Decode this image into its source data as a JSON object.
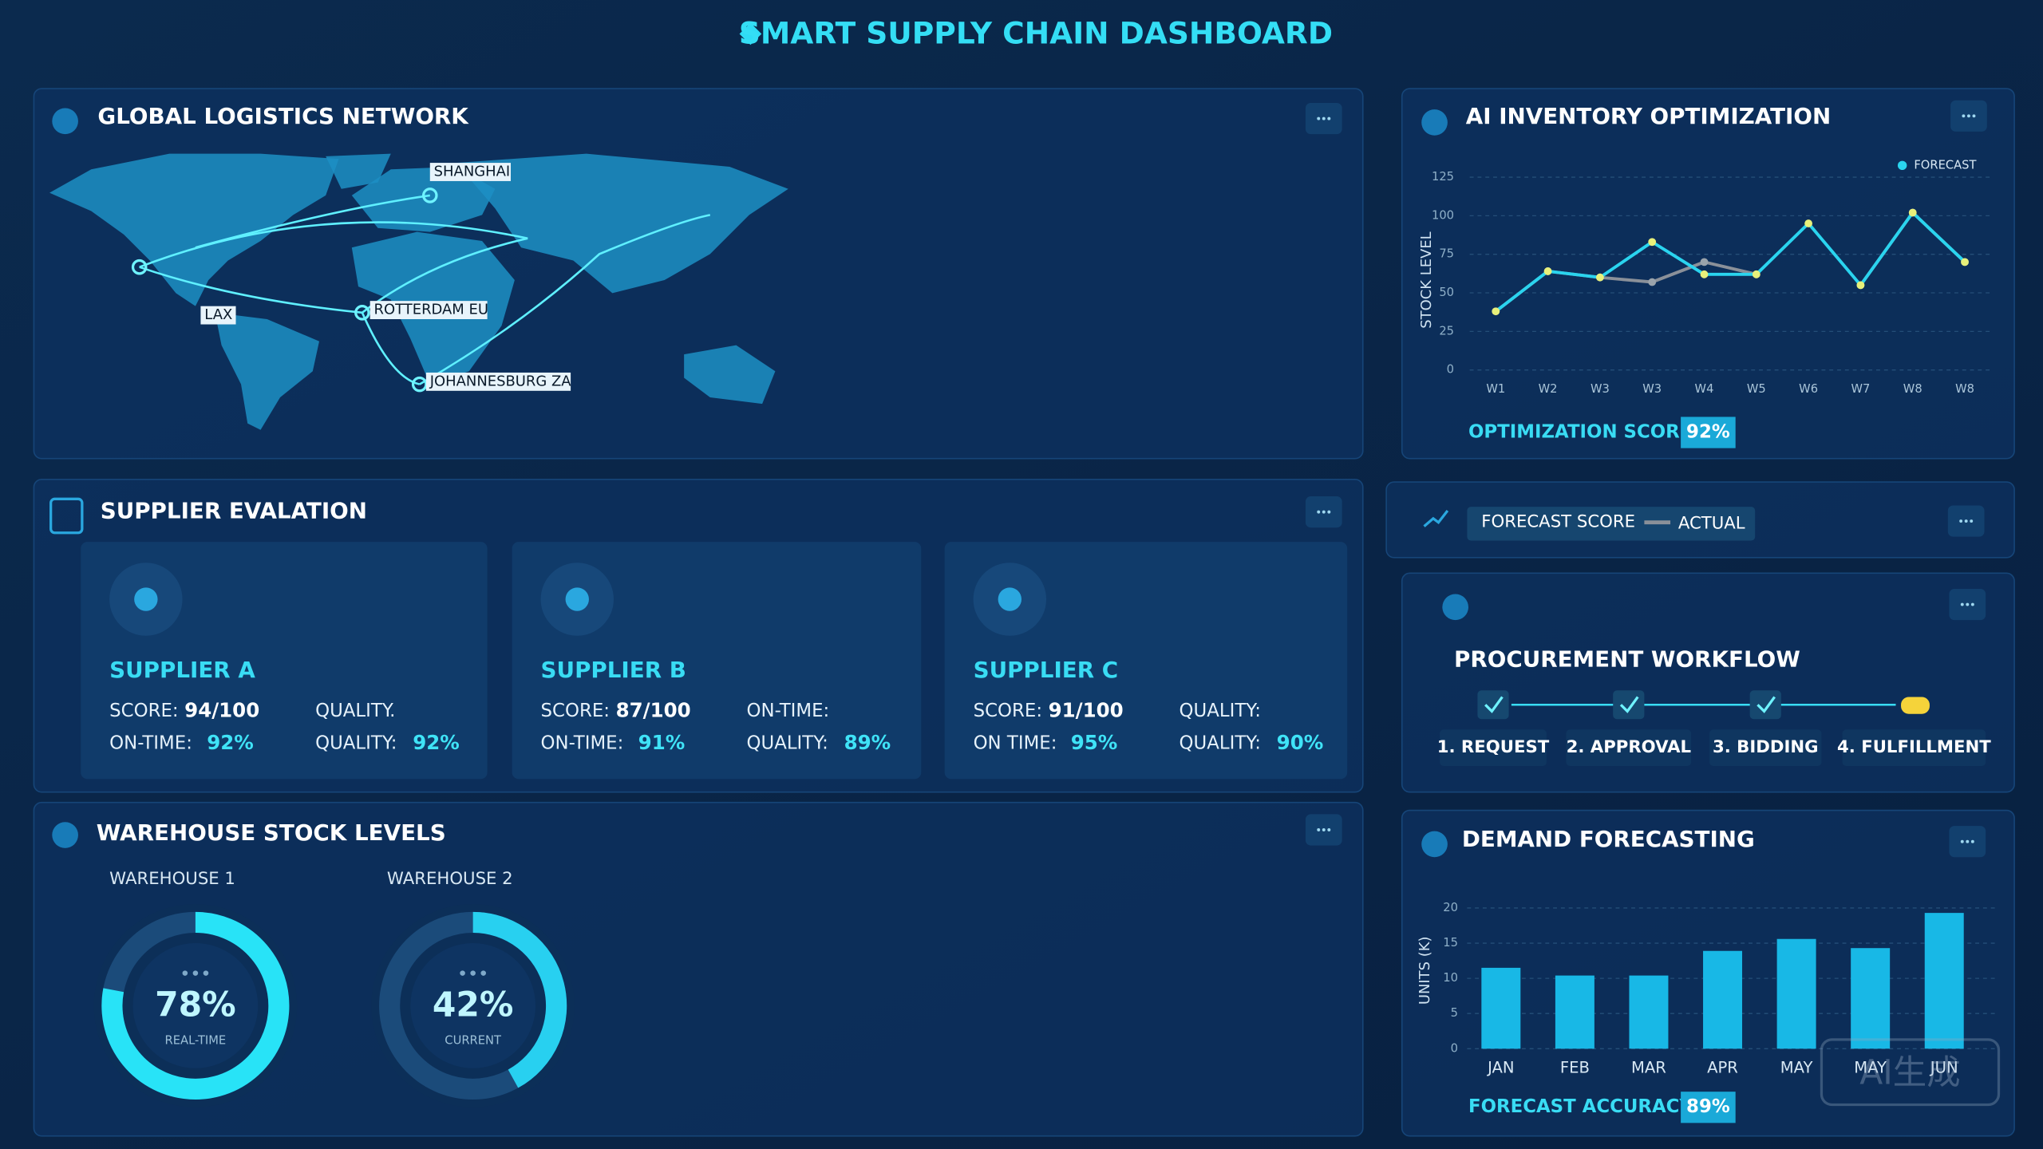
{
  "header": {
    "title": "SMART SUPPLY CHAIN DASHBOARD"
  },
  "logistics": {
    "title": "GLOBAL LOGISTICS NETWORK",
    "locations": [
      "SHANGHAI",
      "LAX",
      "ROTTERDAM EU",
      "JOHANNESBURG ZA"
    ]
  },
  "suppliers": {
    "title": "SUPPLIER EVALATION",
    "cards": [
      {
        "name": "SUPPLIER A",
        "fields": [
          {
            "label": "SCORE:",
            "value": "94/100"
          },
          {
            "label": "QUALITY."
          },
          {
            "label": "ON-TIME:",
            "value": "92%"
          },
          {
            "label": "QUALITY:",
            "value": "92%"
          }
        ]
      },
      {
        "name": "SUPPLIER B",
        "fields": [
          {
            "label": "SCORE:",
            "value": "87/100"
          },
          {
            "label": "ON-TIME:"
          },
          {
            "label": "ON-TIME:",
            "value": "91%"
          },
          {
            "label": "QUALITY:",
            "value": "89%"
          }
        ]
      },
      {
        "name": "SUPPLIER C",
        "fields": [
          {
            "label": "SCORE:",
            "value": "91/100"
          },
          {
            "label": "QUALITY:"
          },
          {
            "label": "ON TIME:",
            "value": "95%"
          },
          {
            "label": "QUALITY:",
            "value": "90%"
          }
        ]
      }
    ]
  },
  "warehouses": {
    "title": "WAREHOUSE STOCK LEVELS",
    "gauges": [
      {
        "name": "WAREHOUSE 1",
        "value": 78,
        "value_label": "78%",
        "caption": "REAL-TIME",
        "color": "#28e3f7"
      },
      {
        "name": "WAREHOUSE 2",
        "value": 42,
        "value_label": "42%",
        "caption": "CURRENT",
        "color": "#28d0f0"
      }
    ]
  },
  "strip": {
    "label": "FORECAST SCORE"
  },
  "procurement": {
    "title": "PROCUREMENT WORKFLOW",
    "steps": [
      "1. REQUEST",
      "2. APPROVAL",
      "3. BIDDING",
      "4. FULFILLMENT"
    ]
  },
  "chart_data": [
    {
      "type": "line",
      "title": "AI INVENTORY OPTIMIZATION",
      "y_label": "STOCK LEVEL",
      "categories": [
        "W1",
        "W2",
        "W3",
        "W3",
        "W4",
        "W5",
        "W6",
        "W7",
        "W8",
        "W8"
      ],
      "series": [
        {
          "name": "FORECAST",
          "color": "#2ad4ef",
          "values": [
            38,
            64,
            60,
            83,
            62,
            62,
            95,
            55,
            102,
            70
          ]
        },
        {
          "name": "ACTUAL",
          "color": "#8a9099",
          "values": [
            38,
            64,
            60,
            57,
            70,
            62,
            null,
            55,
            102,
            70
          ]
        }
      ],
      "ylim": [
        0,
        125
      ],
      "yticks": [
        0,
        25,
        50,
        75,
        100,
        125
      ],
      "grid": true,
      "score_label": "OPTIMIZATION SCORE:",
      "score": "92%"
    },
    {
      "type": "bar",
      "title": "DEMAND FORECASTING",
      "y_label": "UNITS (K)",
      "categories": [
        "JAN",
        "FEB",
        "MAR",
        "APR",
        "MAY",
        "MAY",
        "JUN"
      ],
      "values": [
        11.5,
        10.4,
        10.4,
        13.9,
        15.6,
        14.3,
        19.3
      ],
      "color": "#18b8e6",
      "ylim": [
        0,
        20
      ],
      "yticks": [
        0,
        5,
        10,
        15,
        20
      ],
      "grid": true,
      "score_label": "FORECAST ACCURACY:",
      "score": "89%"
    }
  ],
  "watermark": "AI生成"
}
